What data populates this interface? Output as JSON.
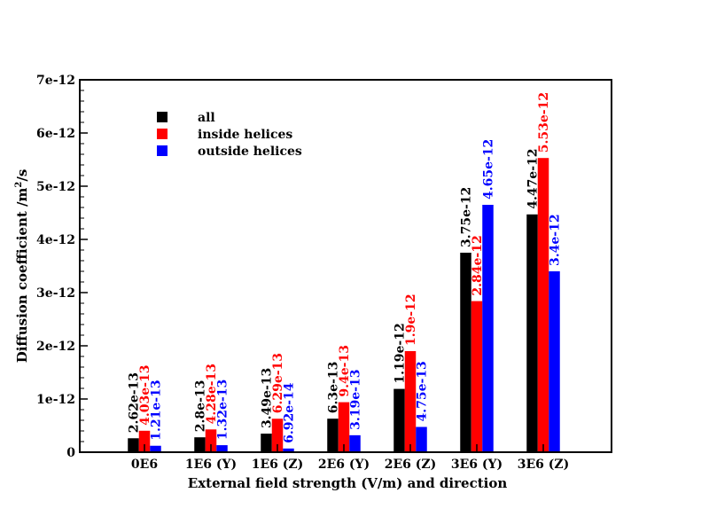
{
  "chart_data": {
    "type": "bar",
    "title": "",
    "xlabel": "External field strength (V/m) and direction",
    "ylabel": "Diffusion coefficient /m",
    "ylabel_sup": "2",
    "ylabel_suffix": "/s",
    "ylim": [
      0,
      7e-12
    ],
    "yticks": [
      0,
      1e-12,
      2e-12,
      3e-12,
      4e-12,
      5e-12,
      6e-12,
      7e-12
    ],
    "ytick_labels": [
      "0",
      "1e-12",
      "2e-12",
      "3e-12",
      "4e-12",
      "5e-12",
      "6e-12",
      "7e-12"
    ],
    "grid": false,
    "legend_position": "top-left",
    "categories": [
      "0E6",
      "1E6 (Y)",
      "1E6 (Z)",
      "2E6 (Y)",
      "2E6 (Z)",
      "3E6 (Y)",
      "3E6 (Z)"
    ],
    "series": [
      {
        "name": "all",
        "color": "#000000",
        "values": [
          2.62e-13,
          2.8e-13,
          3.49e-13,
          6.3e-13,
          1.19e-12,
          3.75e-12,
          4.47e-12
        ],
        "labels": [
          "2.62e-13",
          "2.8e-13",
          "3.49e-13",
          "6.3e-13",
          "1.19e-12",
          "3.75e-12",
          "4.47e-12"
        ]
      },
      {
        "name": "inside helices",
        "color": "#ff0000",
        "values": [
          4.03e-13,
          4.28e-13,
          6.29e-13,
          9.4e-13,
          1.9e-12,
          2.84e-12,
          5.53e-12
        ],
        "labels": [
          "4.03e-13",
          "4.28e-13",
          "6.29e-13",
          "9.4e-13",
          "1.9e-12",
          "2.84e-12",
          "5.53e-12"
        ]
      },
      {
        "name": "outside helices",
        "color": "#0000ff",
        "values": [
          1.21e-13,
          1.32e-13,
          6.92e-14,
          3.19e-13,
          4.75e-13,
          4.65e-12,
          3.4e-12
        ],
        "labels": [
          "1.21e-13",
          "1.32e-13",
          "6.92e-14",
          "3.19e-13",
          "4.75e-13",
          "4.65e-12",
          "3.4e-12"
        ]
      }
    ]
  }
}
